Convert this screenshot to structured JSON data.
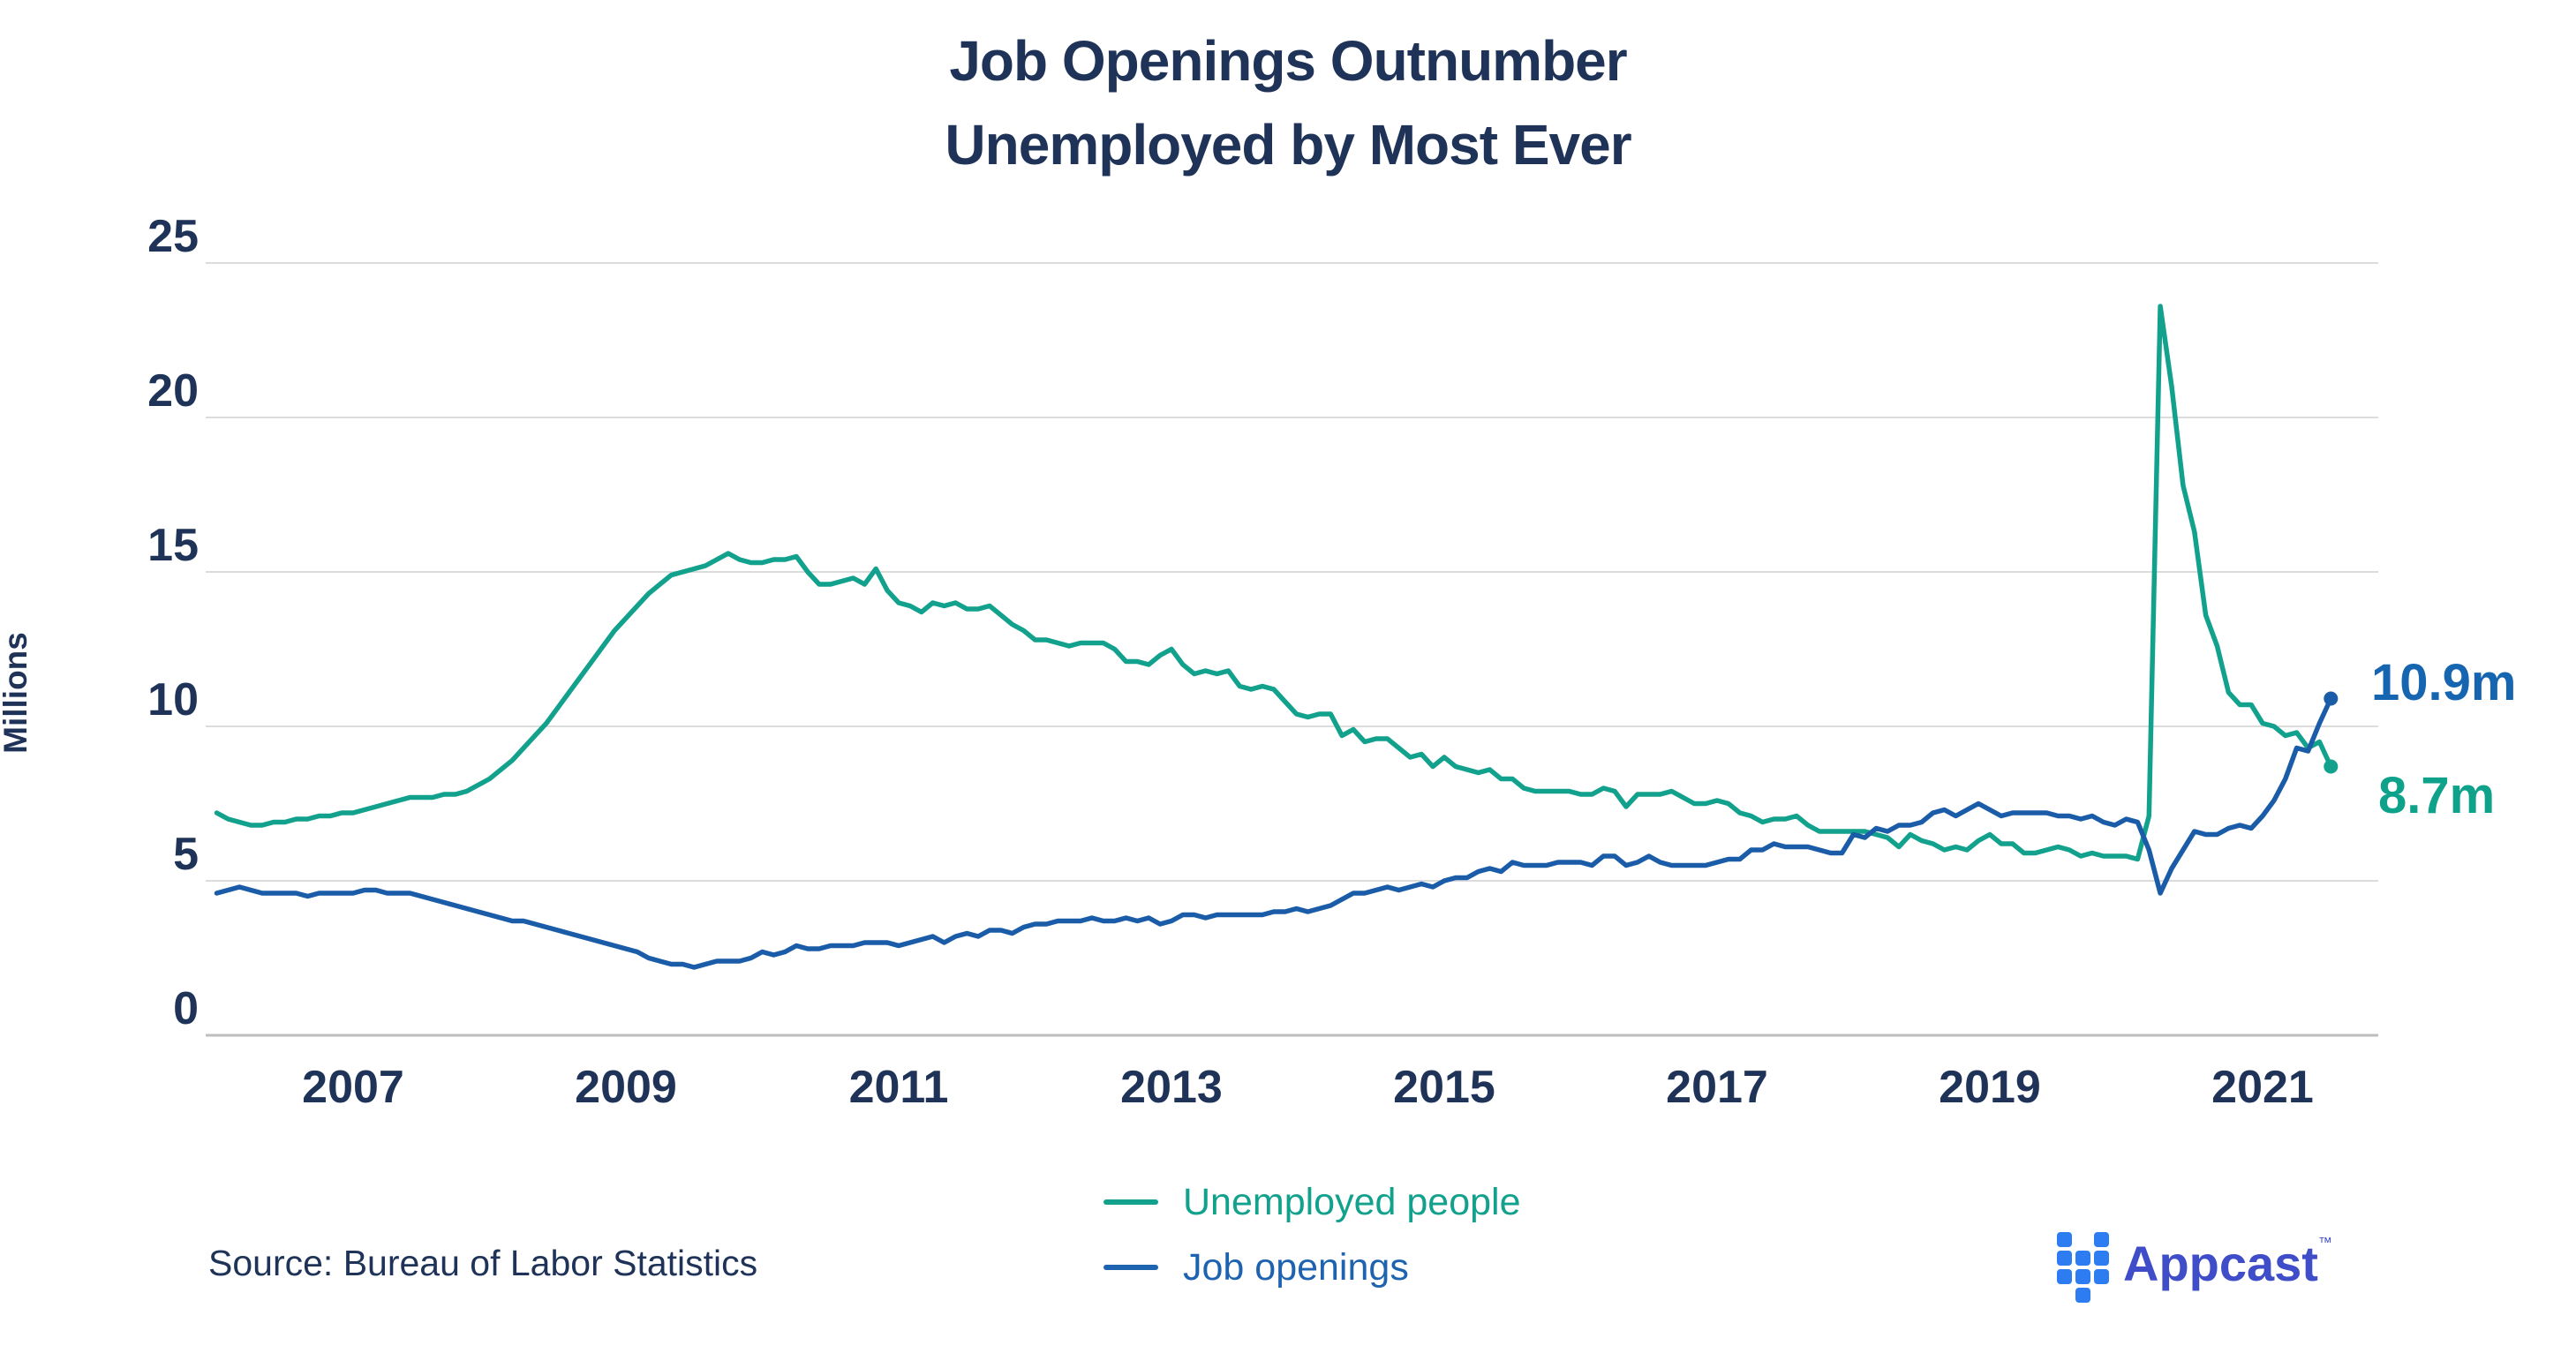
{
  "title": {
    "line1": "Job Openings Outnumber",
    "line2": "Unemployed by Most Ever"
  },
  "y_axis": {
    "label": "Millions",
    "ticks": [
      "25",
      "20",
      "15",
      "10",
      "5",
      "0"
    ]
  },
  "x_axis": {
    "ticks": [
      "2007",
      "2009",
      "2011",
      "2013",
      "2015",
      "2017",
      "2019",
      "2021"
    ]
  },
  "annotations": {
    "openings_end": "10.9m",
    "unemployed_end": "8.7m"
  },
  "legend": {
    "items": [
      {
        "label": "Unemployed people",
        "color": "#12A18C"
      },
      {
        "label": "Job openings",
        "color": "#1D63B0"
      }
    ]
  },
  "source": {
    "text": "Source: Bureau of Labor Statistics"
  },
  "logo": {
    "text": "Appcast",
    "tm": "™"
  },
  "colors": {
    "title_text": "#1E3357",
    "axis_text": "#1E3357",
    "gridline": "#DCDCDC",
    "baseline": "#BEBEBE",
    "unemployed_line": "#12A18C",
    "openings_line": "#1A5CA8",
    "openings_label": "#1565B1",
    "unemployed_label": "#0FA28A",
    "logo_square": "#2E7CF2",
    "logo_text": "#3F4DC8",
    "background": "#FFFFFF"
  },
  "chart_data": {
    "type": "line",
    "title": "Job Openings Outnumber Unemployed by Most Ever",
    "xlabel": "",
    "ylabel": "Millions",
    "ylim": [
      0,
      25
    ],
    "grid": "horizontal",
    "gridlines": [
      0,
      5,
      10,
      15,
      20,
      25
    ],
    "x_tick_labels": [
      2007,
      2009,
      2011,
      2013,
      2015,
      2017,
      2019,
      2021
    ],
    "x_start_year": 2006.0,
    "x_step": "monthly",
    "x_end_year": 2021.5,
    "legend_position": "bottom-center",
    "series": [
      {
        "name": "Unemployed people",
        "color": "#12A18C",
        "end_label": "8.7m",
        "end_value": 8.7,
        "peak_value": 23.6,
        "peak_at": "2020-04",
        "values": [
          7.2,
          7.0,
          6.9,
          6.8,
          6.8,
          6.9,
          6.9,
          7.0,
          7.0,
          7.1,
          7.1,
          7.2,
          7.2,
          7.3,
          7.4,
          7.5,
          7.6,
          7.7,
          7.7,
          7.7,
          7.8,
          7.8,
          7.9,
          8.1,
          8.3,
          8.6,
          8.9,
          9.3,
          9.7,
          10.1,
          10.6,
          11.1,
          11.6,
          12.1,
          12.6,
          13.1,
          13.5,
          13.9,
          14.3,
          14.6,
          14.9,
          15.0,
          15.1,
          15.2,
          15.4,
          15.6,
          15.4,
          15.3,
          15.3,
          15.4,
          15.4,
          15.5,
          15.0,
          14.6,
          14.6,
          14.7,
          14.8,
          14.6,
          15.1,
          14.4,
          14.0,
          13.9,
          13.7,
          14.0,
          13.9,
          14.0,
          13.8,
          13.8,
          13.9,
          13.6,
          13.3,
          13.1,
          12.8,
          12.8,
          12.7,
          12.6,
          12.7,
          12.7,
          12.7,
          12.5,
          12.1,
          12.1,
          12.0,
          12.3,
          12.5,
          12.0,
          11.7,
          11.8,
          11.7,
          11.8,
          11.3,
          11.2,
          11.3,
          11.2,
          10.8,
          10.4,
          10.3,
          10.4,
          10.4,
          9.7,
          9.9,
          9.5,
          9.6,
          9.6,
          9.3,
          9.0,
          9.1,
          8.7,
          9.0,
          8.7,
          8.6,
          8.5,
          8.6,
          8.3,
          8.3,
          8.0,
          7.9,
          7.9,
          7.9,
          7.9,
          7.8,
          7.8,
          8.0,
          7.9,
          7.4,
          7.8,
          7.8,
          7.8,
          7.9,
          7.7,
          7.5,
          7.5,
          7.6,
          7.5,
          7.2,
          7.1,
          6.9,
          7.0,
          7.0,
          7.1,
          6.8,
          6.6,
          6.6,
          6.6,
          6.6,
          6.6,
          6.5,
          6.4,
          6.1,
          6.5,
          6.3,
          6.2,
          6.0,
          6.1,
          6.0,
          6.3,
          6.5,
          6.2,
          6.2,
          5.9,
          5.9,
          6.0,
          6.1,
          6.0,
          5.8,
          5.9,
          5.8,
          5.8,
          5.8,
          5.7,
          7.1,
          23.6,
          21.0,
          17.8,
          16.3,
          13.6,
          12.6,
          11.1,
          10.7,
          10.7,
          10.1,
          10.0,
          9.7,
          9.8,
          9.3,
          9.5,
          8.7
        ]
      },
      {
        "name": "Job openings",
        "color": "#1A5CA8",
        "end_label": "10.9m",
        "end_value": 10.9,
        "trough_value": 2.2,
        "trough_at": "2009-07",
        "values": [
          4.6,
          4.7,
          4.8,
          4.7,
          4.6,
          4.6,
          4.6,
          4.6,
          4.5,
          4.6,
          4.6,
          4.6,
          4.6,
          4.7,
          4.7,
          4.6,
          4.6,
          4.6,
          4.5,
          4.4,
          4.3,
          4.2,
          4.1,
          4.0,
          3.9,
          3.8,
          3.7,
          3.7,
          3.6,
          3.5,
          3.4,
          3.3,
          3.2,
          3.1,
          3.0,
          2.9,
          2.8,
          2.7,
          2.5,
          2.4,
          2.3,
          2.3,
          2.2,
          2.3,
          2.4,
          2.4,
          2.4,
          2.5,
          2.7,
          2.6,
          2.7,
          2.9,
          2.8,
          2.8,
          2.9,
          2.9,
          2.9,
          3.0,
          3.0,
          3.0,
          2.9,
          3.0,
          3.1,
          3.2,
          3.0,
          3.2,
          3.3,
          3.2,
          3.4,
          3.4,
          3.3,
          3.5,
          3.6,
          3.6,
          3.7,
          3.7,
          3.7,
          3.8,
          3.7,
          3.7,
          3.8,
          3.7,
          3.8,
          3.6,
          3.7,
          3.9,
          3.9,
          3.8,
          3.9,
          3.9,
          3.9,
          3.9,
          3.9,
          4.0,
          4.0,
          4.1,
          4.0,
          4.1,
          4.2,
          4.4,
          4.6,
          4.6,
          4.7,
          4.8,
          4.7,
          4.8,
          4.9,
          4.8,
          5.0,
          5.1,
          5.1,
          5.3,
          5.4,
          5.3,
          5.6,
          5.5,
          5.5,
          5.5,
          5.6,
          5.6,
          5.6,
          5.5,
          5.8,
          5.8,
          5.5,
          5.6,
          5.8,
          5.6,
          5.5,
          5.5,
          5.5,
          5.5,
          5.6,
          5.7,
          5.7,
          6.0,
          6.0,
          6.2,
          6.1,
          6.1,
          6.1,
          6.0,
          5.9,
          5.9,
          6.5,
          6.4,
          6.7,
          6.6,
          6.8,
          6.8,
          6.9,
          7.2,
          7.3,
          7.1,
          7.3,
          7.5,
          7.3,
          7.1,
          7.2,
          7.2,
          7.2,
          7.2,
          7.1,
          7.1,
          7.0,
          7.1,
          6.9,
          6.8,
          7.0,
          6.9,
          6.0,
          4.6,
          5.4,
          6.0,
          6.6,
          6.5,
          6.5,
          6.7,
          6.8,
          6.7,
          7.1,
          7.6,
          8.3,
          9.3,
          9.2,
          10.1,
          10.9
        ]
      }
    ]
  }
}
